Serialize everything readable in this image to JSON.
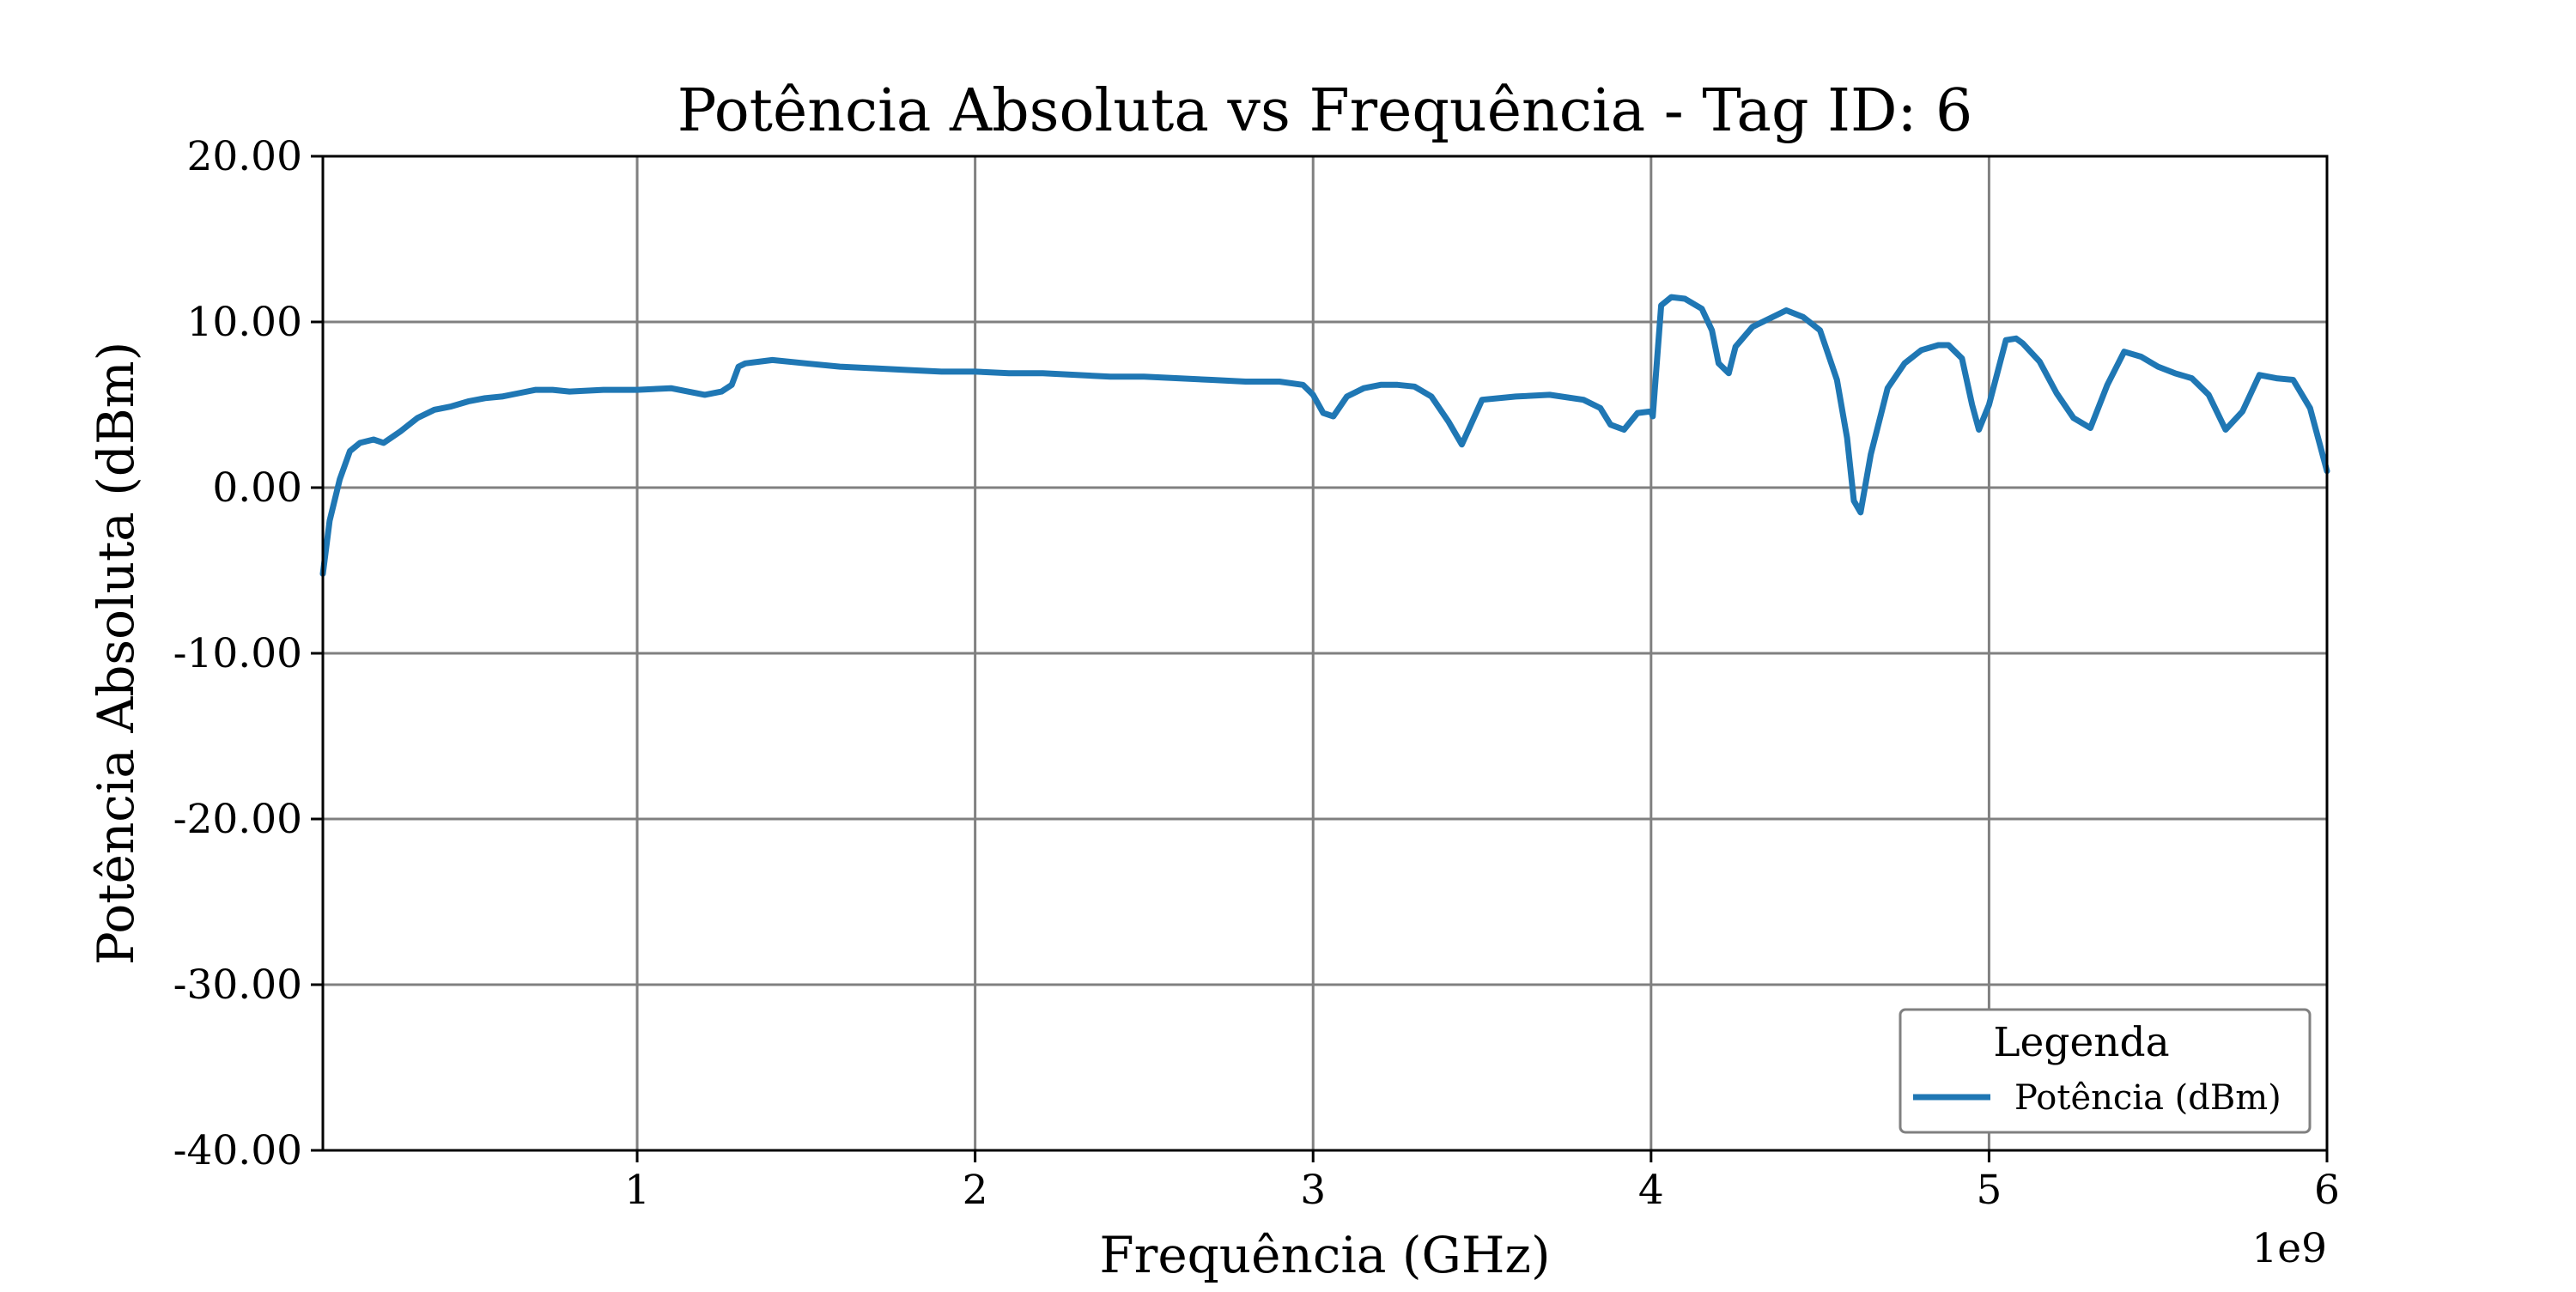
{
  "chart_data": {
    "type": "line",
    "title": "Potência Absoluta vs Frequência - Tag ID: 6",
    "xlabel": "Frequência (GHz)",
    "ylabel": "Potência Absoluta (dBm)",
    "x_offset_label": "1e9",
    "xlim": [
      0.07,
      6.0
    ],
    "ylim": [
      -40,
      20
    ],
    "xticks": [
      1,
      2,
      3,
      4,
      5,
      6
    ],
    "xtick_labels": [
      "1",
      "2",
      "3",
      "4",
      "5",
      "6"
    ],
    "yticks": [
      20,
      10,
      0,
      -10,
      -20,
      -30,
      -40
    ],
    "ytick_labels": [
      "20.00",
      "10.00",
      "0.00",
      "-10.00",
      "-20.00",
      "-30.00",
      "-40.00"
    ],
    "grid": true,
    "legend": {
      "title": "Legenda",
      "placement": "lower-right"
    },
    "colors": {
      "line": "#1f77b4",
      "grid": "#808080",
      "axes": "#000000"
    },
    "series": [
      {
        "name": "Potência (dBm)",
        "x": [
          0.07,
          0.09,
          0.12,
          0.15,
          0.18,
          0.22,
          0.25,
          0.3,
          0.35,
          0.4,
          0.45,
          0.5,
          0.55,
          0.6,
          0.65,
          0.7,
          0.75,
          0.8,
          0.9,
          1.0,
          1.1,
          1.15,
          1.2,
          1.25,
          1.28,
          1.3,
          1.32,
          1.4,
          1.5,
          1.6,
          1.7,
          1.8,
          1.9,
          2.0,
          2.1,
          2.2,
          2.3,
          2.4,
          2.5,
          2.6,
          2.7,
          2.8,
          2.9,
          2.97,
          3.0,
          3.03,
          3.06,
          3.1,
          3.15,
          3.2,
          3.25,
          3.3,
          3.35,
          3.4,
          3.44,
          3.46,
          3.5,
          3.6,
          3.7,
          3.8,
          3.85,
          3.88,
          3.92,
          3.96,
          4.0,
          4.005,
          4.03,
          4.06,
          4.1,
          4.15,
          4.18,
          4.2,
          4.23,
          4.25,
          4.3,
          4.35,
          4.4,
          4.45,
          4.5,
          4.55,
          4.58,
          4.6,
          4.62,
          4.65,
          4.7,
          4.75,
          4.8,
          4.85,
          4.88,
          4.92,
          4.95,
          4.97,
          5.0,
          5.05,
          5.08,
          5.1,
          5.15,
          5.2,
          5.25,
          5.3,
          5.35,
          5.4,
          5.45,
          5.5,
          5.55,
          5.6,
          5.65,
          5.7,
          5.75,
          5.8,
          5.85,
          5.9,
          5.95,
          6.0
        ],
        "y": [
          -5.2,
          -2.0,
          0.5,
          2.2,
          2.7,
          2.9,
          2.7,
          3.4,
          4.2,
          4.7,
          4.9,
          5.2,
          5.4,
          5.5,
          5.7,
          5.9,
          5.9,
          5.8,
          5.9,
          5.9,
          6.0,
          5.8,
          5.6,
          5.8,
          6.2,
          7.3,
          7.5,
          7.7,
          7.5,
          7.3,
          7.2,
          7.1,
          7.0,
          7.0,
          6.9,
          6.9,
          6.8,
          6.7,
          6.7,
          6.6,
          6.5,
          6.4,
          6.4,
          6.2,
          5.6,
          4.5,
          4.3,
          5.5,
          6.0,
          6.2,
          6.2,
          6.1,
          5.5,
          4.0,
          2.6,
          3.5,
          5.3,
          5.5,
          5.6,
          5.3,
          4.8,
          3.8,
          3.5,
          4.5,
          4.6,
          4.3,
          11.0,
          11.5,
          11.4,
          10.8,
          9.5,
          7.5,
          6.9,
          8.5,
          9.7,
          10.2,
          10.7,
          10.3,
          9.5,
          6.5,
          3.0,
          -0.8,
          -1.5,
          2.0,
          6.0,
          7.5,
          8.3,
          8.6,
          8.6,
          7.8,
          5.0,
          3.5,
          5.0,
          8.9,
          9.0,
          8.7,
          7.6,
          5.7,
          4.2,
          3.6,
          6.2,
          8.2,
          7.9,
          7.3,
          6.9,
          6.6,
          5.6,
          3.5,
          4.6,
          6.8,
          6.6,
          6.5,
          4.8,
          1.0
        ]
      }
    ]
  }
}
